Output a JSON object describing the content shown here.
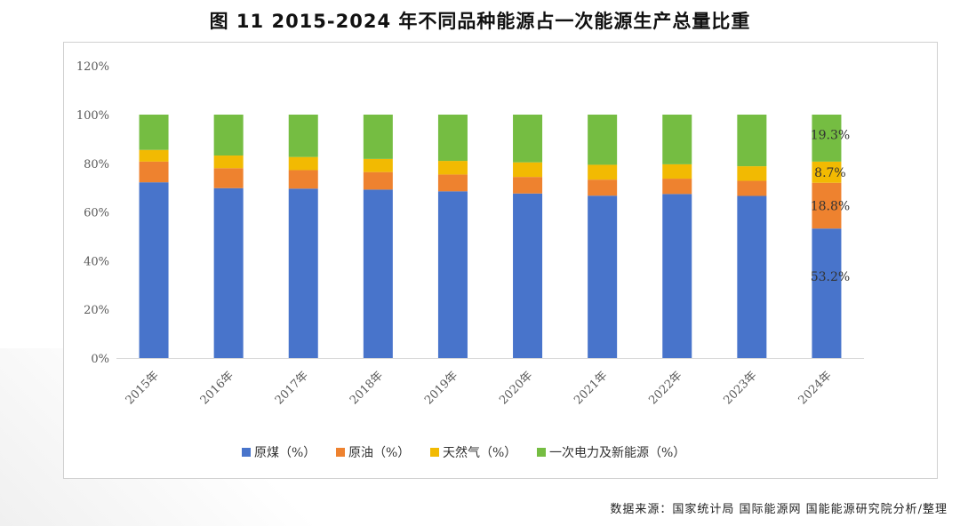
{
  "title": "图 11 2015-2024 年不同品种能源占一次能源生产总量比重",
  "source": "数据来源：国家统计局 国际能源网 国能能源研究院分析/整理",
  "chart_data": {
    "type": "bar",
    "stacked": true,
    "title": "图 11 2015-2024 年不同品种能源占一次能源生产总量比重",
    "categories": [
      "2015年",
      "2016年",
      "2017年",
      "2018年",
      "2019年",
      "2020年",
      "2021年",
      "2022年",
      "2023年",
      "2024年"
    ],
    "series": [
      {
        "name": "原煤（%）",
        "color": "#4874CB",
        "values": [
          72.2,
          69.8,
          69.6,
          69.2,
          68.5,
          67.6,
          66.7,
          67.4,
          66.6,
          53.2
        ]
      },
      {
        "name": "原油（%）",
        "color": "#EE822F",
        "values": [
          8.5,
          8.2,
          7.6,
          7.2,
          6.9,
          6.8,
          6.6,
          6.3,
          6.2,
          18.8
        ]
      },
      {
        "name": "天然气（%）",
        "color": "#F2BA02",
        "values": [
          4.8,
          5.2,
          5.4,
          5.4,
          5.6,
          6.0,
          6.1,
          5.9,
          6.0,
          8.7
        ]
      },
      {
        "name": "一次电力及新能源（%）",
        "color": "#75BD42",
        "values": [
          14.5,
          16.8,
          17.4,
          18.2,
          19.0,
          19.6,
          20.6,
          20.4,
          21.2,
          19.3
        ]
      }
    ],
    "data_labels": {
      "category": "2024年",
      "labels": [
        "53.2%",
        "18.8%",
        "8.7%",
        "19.3%"
      ]
    },
    "yticks": [
      "0%",
      "20%",
      "40%",
      "60%",
      "80%",
      "100%",
      "120%"
    ],
    "ylim": [
      0,
      120
    ],
    "legend": "bottom",
    "grid": false
  }
}
